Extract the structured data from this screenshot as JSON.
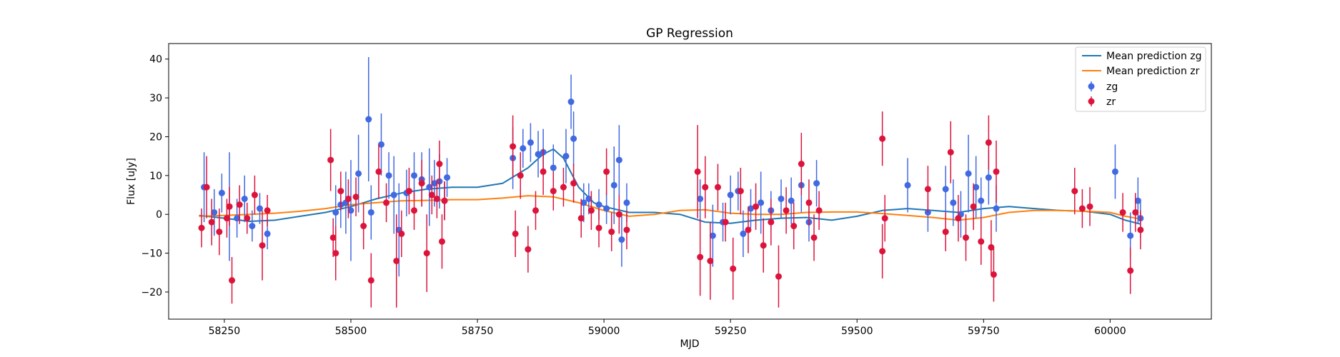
{
  "chart_data": {
    "type": "scatter",
    "title": "GP Regression",
    "xlabel": "MJD",
    "ylabel": "Flux [uJy]",
    "xlim": [
      58140,
      60200
    ],
    "ylim": [
      -27,
      44
    ],
    "xticks": [
      58250,
      58500,
      58750,
      59000,
      59250,
      59500,
      59750,
      60000
    ],
    "yticks": [
      -20,
      -10,
      0,
      10,
      20,
      30,
      40
    ],
    "xtick_labels": [
      "58250",
      "58500",
      "58750",
      "59000",
      "59250",
      "59500",
      "59750",
      "60000"
    ],
    "ytick_labels": [
      "−20",
      "−10",
      "0",
      "10",
      "20",
      "30",
      "40"
    ],
    "legend_position": "top-right",
    "legend": [
      "Mean prediction zg",
      "Mean prediction zr",
      "zg",
      "zr"
    ],
    "colors": {
      "zg_line": "#1f77b4",
      "zr_line": "#ff7f0e",
      "zg_points": "#4169e1",
      "zr_points": "#dc143c"
    },
    "lines": [
      {
        "name": "Mean prediction zg",
        "x": [
          58200,
          58250,
          58300,
          58350,
          58400,
          58450,
          58500,
          58550,
          58600,
          58650,
          58700,
          58750,
          58800,
          58850,
          58880,
          58900,
          58920,
          58950,
          58980,
          59000,
          59050,
          59100,
          59150,
          59200,
          59250,
          59300,
          59350,
          59400,
          59450,
          59500,
          59550,
          59600,
          59650,
          59700,
          59750,
          59800,
          59850,
          59900,
          59950,
          60000,
          60030,
          60060
        ],
        "y": [
          -0.3,
          -1.0,
          -1.8,
          -1.5,
          -0.5,
          0.5,
          2.0,
          4.0,
          5.5,
          6.5,
          7.0,
          7.0,
          8.0,
          12.0,
          15.5,
          16.8,
          14.5,
          7.0,
          3.0,
          2.0,
          0.5,
          0.5,
          0.0,
          -2.0,
          -2.3,
          -1.5,
          -1.0,
          -0.8,
          -1.5,
          -0.5,
          1.0,
          1.5,
          1.0,
          0.5,
          1.5,
          2.0,
          1.5,
          1.0,
          0.8,
          0.0,
          -1.5,
          -2.5
        ]
      },
      {
        "name": "Mean prediction zr",
        "x": [
          58200,
          58250,
          58300,
          58350,
          58400,
          58450,
          58500,
          58550,
          58600,
          58650,
          58700,
          58750,
          58800,
          58850,
          58900,
          58950,
          59000,
          59050,
          59100,
          59150,
          59200,
          59250,
          59300,
          59350,
          59400,
          59450,
          59500,
          59550,
          59600,
          59650,
          59700,
          59750,
          59800,
          59850,
          59900,
          59950,
          60000,
          60030,
          60060
        ],
        "y": [
          -0.5,
          -0.3,
          0.0,
          0.3,
          0.8,
          1.5,
          2.5,
          3.0,
          3.5,
          3.6,
          3.8,
          3.8,
          4.2,
          4.8,
          4.5,
          3.0,
          1.0,
          -0.5,
          0.0,
          1.0,
          1.2,
          0.3,
          0.0,
          0.0,
          0.5,
          0.6,
          0.6,
          0.2,
          -0.3,
          -0.8,
          -1.5,
          -0.8,
          0.5,
          1.0,
          1.0,
          0.8,
          0.5,
          -0.5,
          -1.2
        ]
      }
    ],
    "series": [
      {
        "name": "zg",
        "points": [
          [
            58210,
            7,
            9
          ],
          [
            58230,
            0.5,
            6
          ],
          [
            58245,
            5.5,
            5
          ],
          [
            58260,
            2,
            14
          ],
          [
            58275,
            -1,
            5
          ],
          [
            58290,
            4,
            6
          ],
          [
            58305,
            -3,
            4
          ],
          [
            58320,
            1.5,
            4
          ],
          [
            58335,
            -5,
            4
          ],
          [
            58470,
            0.5,
            7
          ],
          [
            58480,
            2.5,
            6
          ],
          [
            58490,
            3,
            8
          ],
          [
            58500,
            1,
            13
          ],
          [
            58515,
            10.5,
            10
          ],
          [
            58535,
            24.5,
            16
          ],
          [
            58540,
            0.5,
            7
          ],
          [
            58560,
            18,
            8
          ],
          [
            58575,
            10,
            6
          ],
          [
            58585,
            5,
            10
          ],
          [
            58595,
            -4,
            12
          ],
          [
            58610,
            5.5,
            6
          ],
          [
            58625,
            10,
            6
          ],
          [
            58640,
            9,
            7
          ],
          [
            58655,
            7,
            10
          ],
          [
            58665,
            8,
            6
          ],
          [
            58675,
            8.5,
            7
          ],
          [
            58685,
            3.5,
            5
          ],
          [
            58690,
            9.5,
            5
          ],
          [
            58820,
            14.5,
            8
          ],
          [
            58840,
            17,
            5
          ],
          [
            58855,
            18.5,
            5
          ],
          [
            58870,
            15.5,
            6
          ],
          [
            58880,
            16,
            6
          ],
          [
            58900,
            12,
            6
          ],
          [
            58925,
            15,
            7
          ],
          [
            58935,
            29,
            7
          ],
          [
            58940,
            19.5,
            7
          ],
          [
            58960,
            3,
            5
          ],
          [
            58970,
            4,
            4
          ],
          [
            58990,
            2.5,
            4
          ],
          [
            59005,
            1.5,
            4
          ],
          [
            59020,
            7.5,
            10
          ],
          [
            59030,
            14,
            9
          ],
          [
            59035,
            -6.5,
            7
          ],
          [
            59045,
            3,
            5
          ],
          [
            59190,
            4,
            5
          ],
          [
            59215,
            -5.5,
            8
          ],
          [
            59235,
            -2,
            5
          ],
          [
            59250,
            5,
            5
          ],
          [
            59265,
            6,
            5
          ],
          [
            59275,
            -5,
            6
          ],
          [
            59290,
            1.5,
            5
          ],
          [
            59310,
            3,
            8
          ],
          [
            59330,
            1,
            5
          ],
          [
            59350,
            4,
            5
          ],
          [
            59370,
            3.5,
            6
          ],
          [
            59390,
            7.5,
            7
          ],
          [
            59405,
            -2,
            5
          ],
          [
            59420,
            8,
            6
          ],
          [
            59600,
            7.5,
            7
          ],
          [
            59640,
            0.5,
            5
          ],
          [
            59675,
            6.5,
            6
          ],
          [
            59690,
            3,
            6
          ],
          [
            59705,
            0,
            6
          ],
          [
            59720,
            10.5,
            10
          ],
          [
            59735,
            7,
            8
          ],
          [
            59745,
            3.5,
            6
          ],
          [
            59760,
            9.5,
            7
          ],
          [
            59775,
            1.5,
            6
          ],
          [
            60010,
            11,
            7
          ],
          [
            60040,
            -5.5,
            6
          ],
          [
            60055,
            3.5,
            6
          ],
          [
            60060,
            -1,
            5
          ]
        ]
      },
      {
        "name": "zr",
        "points": [
          [
            58205,
            -3.5,
            5
          ],
          [
            58215,
            7,
            8
          ],
          [
            58225,
            -2,
            6
          ],
          [
            58240,
            -4.5,
            6
          ],
          [
            58255,
            -1,
            5
          ],
          [
            58260,
            2,
            5
          ],
          [
            58265,
            -17,
            6
          ],
          [
            58280,
            2.5,
            5
          ],
          [
            58295,
            -1,
            4
          ],
          [
            58310,
            5,
            5
          ],
          [
            58325,
            -8,
            9
          ],
          [
            58335,
            1,
            4
          ],
          [
            58460,
            14,
            8
          ],
          [
            58465,
            -6,
            5
          ],
          [
            58470,
            -10,
            7
          ],
          [
            58480,
            6,
            5
          ],
          [
            58495,
            4,
            5
          ],
          [
            58510,
            4.5,
            5
          ],
          [
            58525,
            -3,
            6
          ],
          [
            58540,
            -17,
            7
          ],
          [
            58555,
            11,
            7
          ],
          [
            58570,
            3,
            5
          ],
          [
            58590,
            -12,
            12
          ],
          [
            58600,
            -5,
            6
          ],
          [
            58615,
            6,
            6
          ],
          [
            58625,
            1,
            5
          ],
          [
            58640,
            8,
            6
          ],
          [
            58650,
            -10,
            10
          ],
          [
            58660,
            5,
            5
          ],
          [
            58670,
            4,
            5
          ],
          [
            58675,
            13,
            6
          ],
          [
            58680,
            -7,
            7
          ],
          [
            58685,
            3.5,
            5
          ],
          [
            58820,
            17.5,
            8
          ],
          [
            58825,
            -5,
            6
          ],
          [
            58835,
            10,
            6
          ],
          [
            58850,
            -9,
            6
          ],
          [
            58865,
            1,
            5
          ],
          [
            58880,
            11,
            6
          ],
          [
            58900,
            6,
            5
          ],
          [
            58920,
            7,
            5
          ],
          [
            58940,
            8,
            5
          ],
          [
            58955,
            -1,
            5
          ],
          [
            58975,
            1,
            5
          ],
          [
            58990,
            -3.5,
            5
          ],
          [
            59005,
            11,
            6
          ],
          [
            59015,
            -4.5,
            5
          ],
          [
            59030,
            0,
            5
          ],
          [
            59045,
            -4,
            5
          ],
          [
            59185,
            11,
            12
          ],
          [
            59190,
            -11,
            10
          ],
          [
            59200,
            7,
            8
          ],
          [
            59210,
            -12,
            10
          ],
          [
            59225,
            7,
            6
          ],
          [
            59240,
            -2,
            5
          ],
          [
            59255,
            -14,
            8
          ],
          [
            59270,
            6,
            6
          ],
          [
            59285,
            -4,
            6
          ],
          [
            59300,
            2,
            6
          ],
          [
            59315,
            -8,
            7
          ],
          [
            59330,
            -2,
            6
          ],
          [
            59345,
            -16,
            8
          ],
          [
            59360,
            1,
            6
          ],
          [
            59375,
            -3,
            6
          ],
          [
            59390,
            13,
            8
          ],
          [
            59405,
            3,
            6
          ],
          [
            59415,
            -6,
            6
          ],
          [
            59425,
            1,
            5
          ],
          [
            59550,
            19.5,
            7
          ],
          [
            59550,
            -9.5,
            7
          ],
          [
            59555,
            -1,
            6
          ],
          [
            59640,
            6.5,
            6
          ],
          [
            59675,
            -4.5,
            5
          ],
          [
            59685,
            16,
            8
          ],
          [
            59700,
            -1,
            6
          ],
          [
            59715,
            -6,
            6
          ],
          [
            59730,
            2,
            6
          ],
          [
            59745,
            -7,
            6
          ],
          [
            59760,
            18.5,
            7
          ],
          [
            59765,
            -8.5,
            7
          ],
          [
            59770,
            -15.5,
            7
          ],
          [
            59775,
            11,
            8
          ],
          [
            59930,
            6,
            6
          ],
          [
            59945,
            1.5,
            5
          ],
          [
            59960,
            2,
            5
          ],
          [
            60025,
            0.5,
            5
          ],
          [
            60040,
            -14.5,
            6
          ],
          [
            60050,
            0.5,
            5
          ],
          [
            60060,
            -4,
            5
          ]
        ]
      }
    ]
  }
}
